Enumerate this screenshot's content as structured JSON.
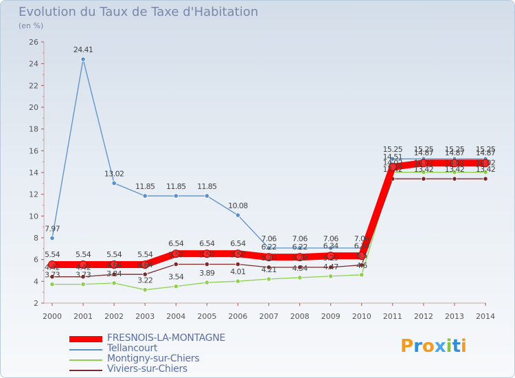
{
  "header": {
    "title": "Evolution du Taux de Taxe d'Habitation",
    "subtitle": "(en %)"
  },
  "logo": {
    "text": "Proxiti",
    "letters": [
      {
        "ch": "P",
        "color": "#f39a1f"
      },
      {
        "ch": "r",
        "color": "#2f8fd8"
      },
      {
        "ch": "o",
        "color": "#f39a1f"
      },
      {
        "ch": "x",
        "color": "#4aa6e6"
      },
      {
        "ch": "i",
        "color": "#8ac33e"
      },
      {
        "ch": "t",
        "color": "#2f8fd8"
      },
      {
        "ch": "i",
        "color": "#f39a1f"
      }
    ]
  },
  "chart_data": {
    "type": "line",
    "title": "Evolution du Taux de Taxe d'Habitation",
    "subtitle": "(en %)",
    "xlabel": "",
    "ylabel": "",
    "categories": [
      "2000",
      "2001",
      "2002",
      "2003",
      "2004",
      "2005",
      "2006",
      "2007",
      "2008",
      "2009",
      "2010",
      "2011",
      "2012",
      "2013",
      "2014"
    ],
    "ylim": [
      2,
      26
    ],
    "yticks": [
      2,
      4,
      6,
      8,
      10,
      12,
      14,
      16,
      18,
      20,
      22,
      24,
      26
    ],
    "grid": false,
    "legend_position": "bottom-left",
    "series": [
      {
        "name": "FRESNOIS-LA-MONTAGNE",
        "color": "#ff0000",
        "emphasis": true,
        "values": [
          5.54,
          5.54,
          5.54,
          5.54,
          6.54,
          6.54,
          6.54,
          6.22,
          6.22,
          6.34,
          6.34,
          14.51,
          14.87,
          14.87,
          14.87
        ],
        "labels": [
          "5.54",
          "5.54",
          "5.54",
          "5.54",
          "6.54",
          "6.54",
          "6.54",
          "6.22",
          "6.22",
          "6.34",
          "6.34",
          "14.51",
          "14.87",
          "14.87",
          "14.87"
        ]
      },
      {
        "name": "Tellancourt",
        "color": "#5b8fc9",
        "emphasis": false,
        "values": [
          7.97,
          24.41,
          13.02,
          11.85,
          11.85,
          11.85,
          10.08,
          7.06,
          7.06,
          7.06,
          7.06,
          15.25,
          15.25,
          15.25,
          15.25
        ],
        "labels": [
          "7.97",
          "24.41",
          "13.02",
          "11.85",
          "11.85",
          "11.85",
          "10.08",
          "7.06",
          "7.06",
          "7.06",
          "7.06",
          "15.25",
          "15.25",
          "15.25",
          "15.25"
        ]
      },
      {
        "name": "Montigny-sur-Chiers",
        "color": "#8fd14f",
        "emphasis": false,
        "values": [
          3.73,
          3.73,
          3.84,
          3.22,
          3.54,
          3.89,
          4.01,
          4.21,
          4.34,
          4.47,
          4.6,
          14.02,
          14.02,
          14.02,
          14.02
        ],
        "labels": [
          "3.73",
          "3.73",
          "3.84",
          "3.22",
          "3.54",
          "3.89",
          "4.01",
          "4.21",
          "4.34",
          "4.47",
          "4.6",
          "14.02",
          "14.02",
          "14.02",
          "14.02"
        ]
      },
      {
        "name": "Viviers-sur-Chiers",
        "color": "#7a2a2a",
        "emphasis": false,
        "values": [
          4.42,
          4.42,
          4.64,
          4.64,
          5.57,
          5.57,
          5.57,
          5.29,
          5.29,
          5.29,
          5.5,
          13.42,
          13.42,
          13.42,
          13.42
        ],
        "labels": [
          "4.42",
          "4.42",
          "4.64",
          "4.64",
          "5.57",
          "5.57",
          "5.57",
          "5.29",
          "5.29",
          "5.29",
          "5.5",
          "13.42",
          "13.42",
          "13.42",
          "13.42"
        ]
      }
    ]
  }
}
